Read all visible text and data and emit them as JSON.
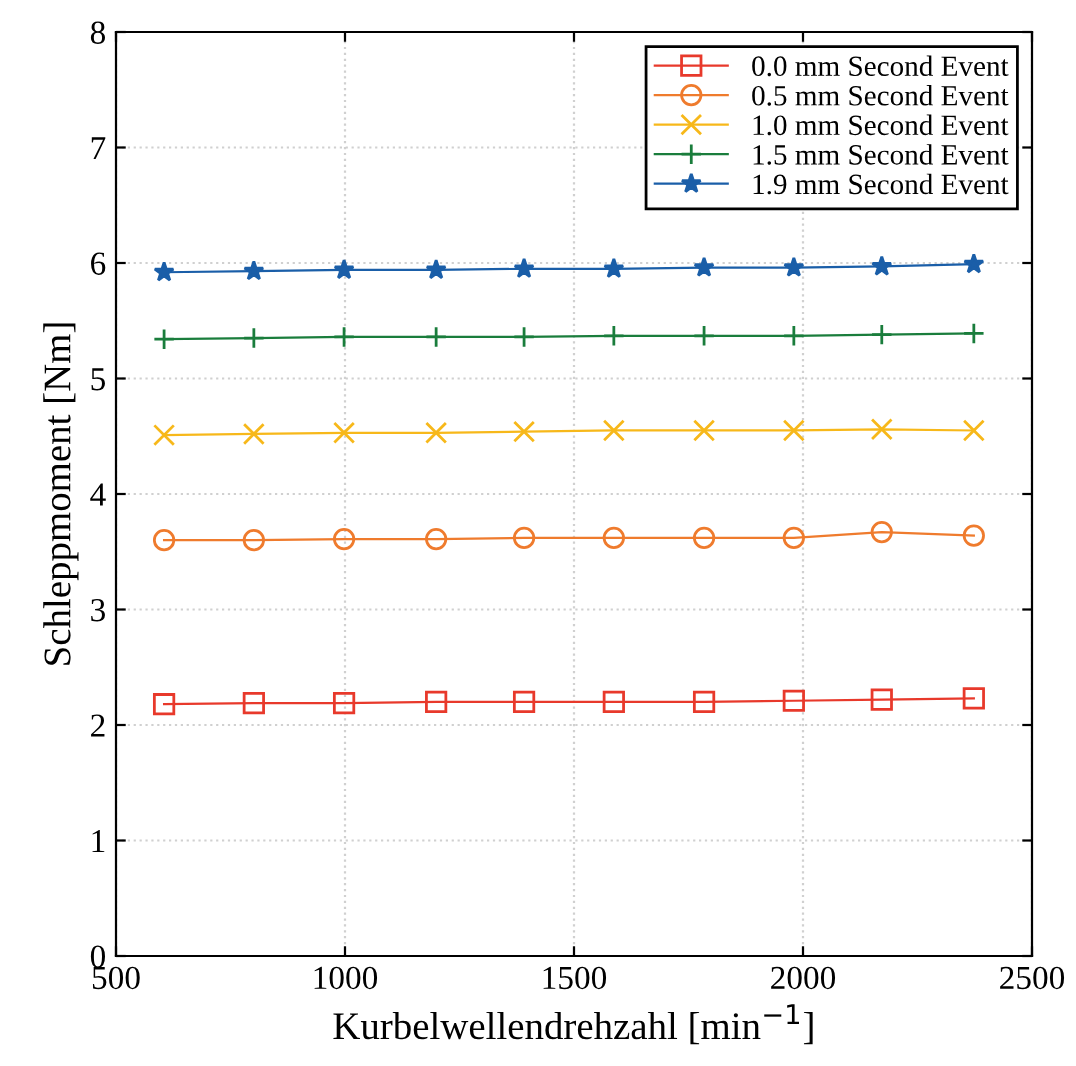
{
  "chart_data": {
    "type": "line",
    "xlabel": "Kurbelwellendrehzahl [min$^{−1}$]",
    "ylabel": "Schleppmoment [Nm]",
    "xlim": [
      500,
      2500
    ],
    "xticks": [
      500,
      1000,
      1500,
      2000,
      2500
    ],
    "ylim": [
      0,
      8
    ],
    "yticks": [
      0,
      1,
      2,
      3,
      4,
      5,
      6,
      7,
      8
    ],
    "grid": true,
    "legend": "top right",
    "x": [
      605,
      801,
      998,
      1199,
      1391,
      1587,
      1784,
      1980,
      2172,
      2373
    ],
    "series": [
      {
        "name": "0.0 mm Second Event",
        "color": "#e8392b",
        "marker": "square",
        "values": [
          2.18,
          2.19,
          2.19,
          2.2,
          2.2,
          2.2,
          2.2,
          2.21,
          2.22,
          2.23
        ]
      },
      {
        "name": "0.5 mm Second Event",
        "color": "#ef7b2d",
        "marker": "circle",
        "values": [
          3.6,
          3.6,
          3.61,
          3.61,
          3.62,
          3.62,
          3.62,
          3.62,
          3.67,
          3.64
        ]
      },
      {
        "name": "1.0 mm Second Event",
        "color": "#f7b81a",
        "marker": "cross",
        "values": [
          4.51,
          4.52,
          4.53,
          4.53,
          4.54,
          4.55,
          4.55,
          4.55,
          4.56,
          4.55
        ]
      },
      {
        "name": "1.5 mm Second Event",
        "color": "#1a7d3c",
        "marker": "plus",
        "values": [
          5.34,
          5.35,
          5.36,
          5.36,
          5.36,
          5.37,
          5.37,
          5.37,
          5.38,
          5.39
        ]
      },
      {
        "name": "1.9 mm Second Event",
        "color": "#1a5ea8",
        "marker": "star",
        "values": [
          5.92,
          5.93,
          5.94,
          5.94,
          5.95,
          5.95,
          5.96,
          5.96,
          5.97,
          5.99
        ]
      }
    ]
  }
}
